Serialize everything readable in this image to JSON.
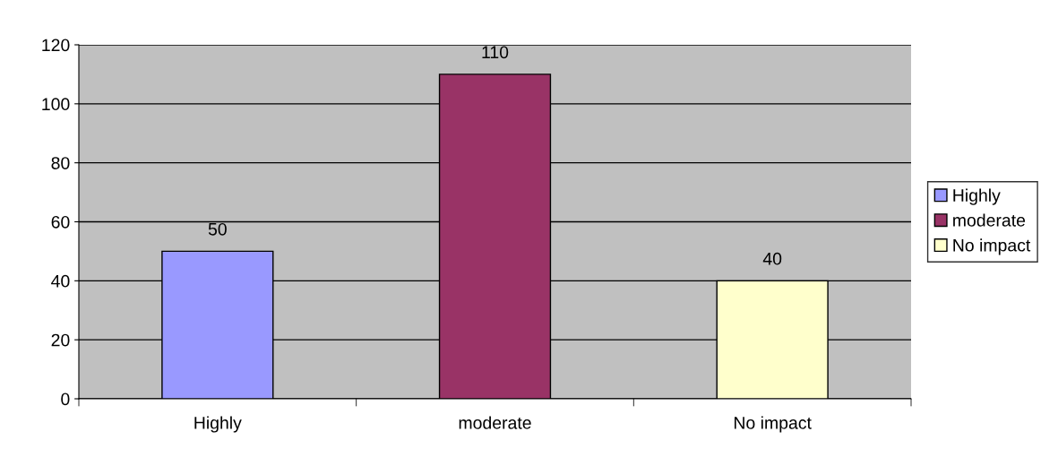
{
  "chart_data": {
    "type": "bar",
    "categories": [
      "Highly",
      "moderate",
      "No impact"
    ],
    "stacked": true,
    "series": [
      {
        "name": "Highly",
        "color": "#9999ff",
        "values": [
          50,
          null,
          null
        ]
      },
      {
        "name": "moderate",
        "color": "#993366",
        "values": [
          null,
          110,
          null
        ]
      },
      {
        "name": "No impact",
        "color": "#ffffcc",
        "values": [
          null,
          null,
          40
        ]
      }
    ],
    "ylim": [
      0,
      120
    ],
    "yticks": [
      0,
      20,
      40,
      60,
      80,
      100,
      120
    ],
    "grid": "y",
    "legend": "right",
    "data_labels": true
  }
}
